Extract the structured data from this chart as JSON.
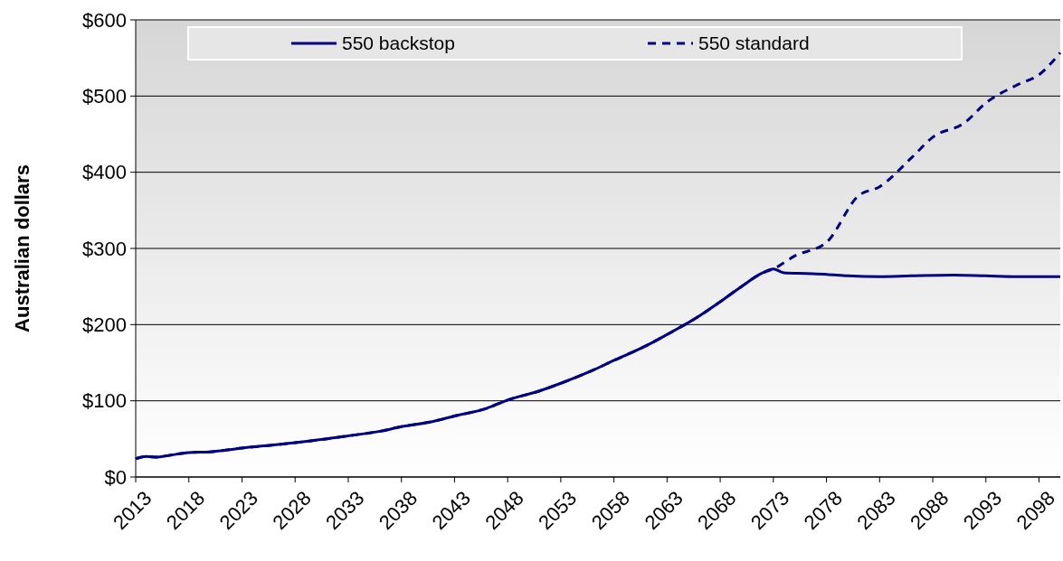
{
  "chart_data": {
    "type": "line",
    "ylabel": "Australian dollars",
    "xlim": [
      2013,
      2100
    ],
    "xticks": [
      2013,
      2018,
      2023,
      2028,
      2033,
      2038,
      2043,
      2048,
      2053,
      2058,
      2063,
      2068,
      2073,
      2078,
      2083,
      2088,
      2093,
      2098
    ],
    "ylim": [
      0,
      600
    ],
    "yticks": [
      {
        "value": 0,
        "label": "$0"
      },
      {
        "value": 100,
        "label": "$100"
      },
      {
        "value": 200,
        "label": "$200"
      },
      {
        "value": 300,
        "label": "$300"
      },
      {
        "value": 400,
        "label": "$400"
      },
      {
        "value": 500,
        "label": "$500"
      },
      {
        "value": 600,
        "label": "$600"
      }
    ],
    "grid": "y",
    "legend": "top",
    "marker": "none",
    "series": [
      {
        "name": "550 backstop",
        "color": "#000080",
        "line_style": "solid",
        "x": [
          2013,
          2014,
          2015,
          2016,
          2018,
          2020,
          2023,
          2026,
          2028,
          2031,
          2033,
          2036,
          2038,
          2041,
          2043,
          2046,
          2048,
          2051,
          2053,
          2056,
          2058,
          2061,
          2063,
          2066,
          2068,
          2070,
          2072,
          2073,
          2074,
          2076,
          2078,
          2080,
          2083,
          2086,
          2090,
          2093,
          2096,
          2100
        ],
        "values": [
          24,
          27,
          26,
          28,
          32,
          33,
          38,
          42,
          45,
          50,
          54,
          60,
          66,
          73,
          80,
          90,
          101,
          113,
          123,
          140,
          153,
          172,
          187,
          211,
          230,
          250,
          268,
          273,
          268,
          267,
          266,
          264,
          263,
          264,
          265,
          264,
          263,
          263
        ]
      },
      {
        "name": "550 standard",
        "color": "#000080",
        "line_style": "dashed",
        "x": [
          2013,
          2014,
          2015,
          2016,
          2018,
          2020,
          2023,
          2026,
          2028,
          2031,
          2033,
          2036,
          2038,
          2041,
          2043,
          2046,
          2048,
          2051,
          2053,
          2056,
          2058,
          2061,
          2063,
          2066,
          2068,
          2070,
          2072,
          2073,
          2075,
          2078,
          2081,
          2083,
          2086,
          2088,
          2091,
          2093,
          2096,
          2098,
          2100
        ],
        "values": [
          24,
          27,
          26,
          28,
          32,
          33,
          38,
          42,
          45,
          50,
          54,
          60,
          66,
          73,
          80,
          90,
          101,
          113,
          123,
          140,
          153,
          172,
          187,
          211,
          230,
          250,
          268,
          273,
          290,
          308,
          369,
          381,
          419,
          446,
          465,
          491,
          515,
          528,
          557
        ]
      }
    ]
  }
}
